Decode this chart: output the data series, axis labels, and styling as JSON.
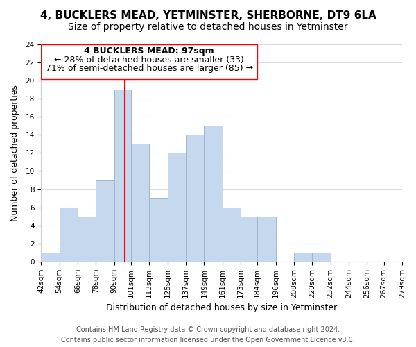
{
  "title": "4, BUCKLERS MEAD, YETMINSTER, SHERBORNE, DT9 6LA",
  "subtitle": "Size of property relative to detached houses in Yetminster",
  "xlabel": "Distribution of detached houses by size in Yetminster",
  "ylabel": "Number of detached properties",
  "footer_line1": "Contains HM Land Registry data © Crown copyright and database right 2024.",
  "footer_line2": "Contains public sector information licensed under the Open Government Licence v3.0.",
  "annotation_line1": "4 BUCKLERS MEAD: 97sqm",
  "annotation_line2": "← 28% of detached houses are smaller (33)",
  "annotation_line3": "71% of semi-detached houses are larger (85) →",
  "bar_color": "#c5d8ed",
  "bar_edge_color": "#a0b8cc",
  "vline_x": 97,
  "vline_color": "red",
  "bins": [
    42,
    54,
    66,
    78,
    90,
    101,
    113,
    125,
    137,
    149,
    161,
    173,
    184,
    196,
    208,
    220,
    232,
    244,
    256,
    267,
    279
  ],
  "bin_labels": [
    "42sqm",
    "54sqm",
    "66sqm",
    "78sqm",
    "90sqm",
    "101sqm",
    "113sqm",
    "125sqm",
    "137sqm",
    "149sqm",
    "161sqm",
    "173sqm",
    "184sqm",
    "196sqm",
    "208sqm",
    "220sqm",
    "232sqm",
    "244sqm",
    "256sqm",
    "267sqm",
    "279sqm"
  ],
  "counts": [
    1,
    6,
    5,
    9,
    19,
    13,
    7,
    12,
    14,
    15,
    6,
    5,
    5,
    0,
    1,
    1,
    0,
    0,
    0,
    0
  ],
  "ylim": [
    0,
    24
  ],
  "yticks": [
    0,
    2,
    4,
    6,
    8,
    10,
    12,
    14,
    16,
    18,
    20,
    22,
    24
  ],
  "title_fontsize": 11,
  "subtitle_fontsize": 10,
  "axis_label_fontsize": 9,
  "tick_fontsize": 7.5,
  "annotation_fontsize": 9,
  "footer_fontsize": 7
}
